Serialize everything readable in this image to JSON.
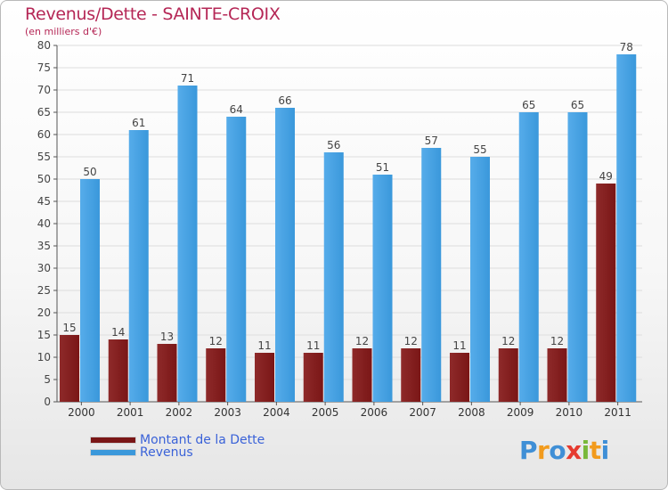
{
  "header": {
    "title": "Revenus/Dette - SAINTE-CROIX",
    "subtitle": "(en milliers d'€)"
  },
  "colors": {
    "debt": "#7a1616",
    "debt_light": "#8e2a2a",
    "revenue": "#3a98db",
    "revenue_light": "#56acea",
    "text": "#b52756",
    "legend_text": "#3a62d8",
    "grid": "#dddddd"
  },
  "chart_data": {
    "type": "bar",
    "title": "Revenus/Dette - SAINTE-CROIX",
    "ylabel": "(en milliers d'€)",
    "xlabel": "",
    "categories": [
      "2000",
      "2001",
      "2002",
      "2003",
      "2004",
      "2005",
      "2006",
      "2007",
      "2008",
      "2009",
      "2010",
      "2011"
    ],
    "series": [
      {
        "name": "Montant de la Dette",
        "values": [
          15,
          14,
          13,
          12,
          11,
          11,
          12,
          12,
          11,
          12,
          12,
          49
        ]
      },
      {
        "name": "Revenus",
        "values": [
          50,
          61,
          71,
          64,
          66,
          56,
          51,
          57,
          55,
          65,
          65,
          78
        ]
      }
    ],
    "ylim": [
      0,
      80
    ],
    "yticks": [
      0,
      5,
      10,
      15,
      20,
      25,
      30,
      35,
      40,
      45,
      50,
      55,
      60,
      65,
      70,
      75,
      80
    ],
    "grid": true,
    "legend": "bottom-left"
  },
  "legend": {
    "items": [
      {
        "label": "Montant de la Dette",
        "color": "#7a1616"
      },
      {
        "label": "Revenus",
        "color": "#3a98db"
      }
    ]
  },
  "logo": {
    "letters": [
      "P",
      "r",
      "o",
      "x",
      "i",
      "t",
      "i"
    ],
    "colors": [
      "#3f8fd6",
      "#f29b1d",
      "#3f8fd6",
      "#e63a2f",
      "#79b83a",
      "#f29b1d",
      "#3f8fd6"
    ]
  }
}
